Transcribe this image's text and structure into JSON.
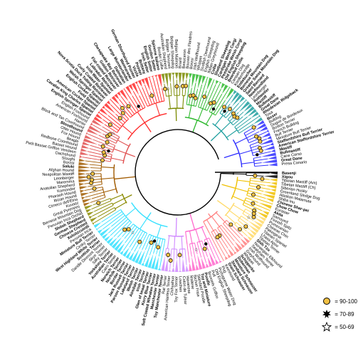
{
  "diagram": {
    "type": "circular-phylogenetic-tree",
    "clades": [
      {
        "color": "#000000",
        "tips": 2,
        "labels": [
          "Basenji",
          "Xigou"
        ],
        "bold": [
          true,
          true
        ]
      },
      {
        "color": "#f0c000",
        "tips": 12,
        "labels": [
          "Tibetan Mastiff (Am)",
          "Tibetan Mastiff (Ch)",
          "Siberian Husky",
          "Greenland Sledge Dog",
          "Alaskan Malamute",
          "Shiba Inu",
          "Chinese Shar-pei",
          "Chow Chow",
          "Eurasier",
          "Akita",
          "Samoyed",
          "Finnish Spitz"
        ],
        "bold": [
          false,
          false,
          false,
          false,
          false,
          false,
          true,
          true,
          false,
          true,
          false,
          false
        ]
      },
      {
        "color": "#ffd966",
        "tips": 8,
        "labels": [
          "Pomeranian",
          "Chinese Chin",
          "Pekingese",
          "Tibetan Spaniel",
          "Lhasa Apso",
          "Tibetan Terrier",
          "Shih Tzu",
          "Norwegian Elkhound"
        ],
        "bold": [
          false,
          false,
          false,
          false,
          false,
          false,
          true,
          false
        ]
      },
      {
        "color": "#ff8080",
        "tips": 10,
        "labels": [
          "Sealyham Terrier",
          "Irish Wolfhound",
          "Greyhound",
          "Whippet",
          "Schipperke",
          "Doberman",
          "Miniature Schnauzer",
          "Standard Schnauzer",
          "Giant Schnauzer",
          "Keeshond"
        ],
        "bold": [
          false,
          false,
          false,
          false,
          true,
          true,
          true,
          true,
          true,
          false
        ]
      },
      {
        "color": "#ff66cc",
        "tips": 10,
        "labels": [
          "Pug",
          "Portuguese Water Dog",
          "Old English Sheepdog",
          "Puli",
          "Brussels Griffon",
          "Poodle",
          "Toy and Miniature",
          "Standard Poodle",
          "Bichon Frise",
          "Maltese"
        ],
        "bold": [
          false,
          false,
          false,
          false,
          false,
          true,
          true,
          false,
          false,
          false
        ]
      },
      {
        "color": "#d08aff",
        "tips": 8,
        "labels": [
          "Havanese",
          "Coton de Tulear",
          "Lowchen",
          "Toy Fox Terrier",
          "Chihuahua",
          "American Hairless Terrier",
          "Rat Terrier",
          "Toy Manchester Terrier"
        ],
        "bold": [
          false,
          false,
          false,
          false,
          false,
          false,
          false,
          true
        ]
      },
      {
        "color": "#33e0ff",
        "tips": 24,
        "labels": [
          "Manchester Terrier",
          "Soft Coated Wheaten Terrier",
          "Kerry Blue Terrier",
          "Glen of Imaal Terrier",
          "Irish Terrier",
          "Airedale Terrier",
          "Welsh Terrier",
          "Lakeland Terrier",
          "Parson Russell Terrier",
          "Jack Russell Terrier",
          "Border Terrier",
          "Norfolk Terrier",
          "Norwich Terrier",
          "Cairn Terrier",
          "Australian Terrier",
          "Yorkshire Terrier",
          "Silky Terrier",
          "Skye Terrier",
          "Dandie Dinmont Terrier",
          "Scottish Terrier",
          "West Highland White Terrier",
          "Cesky Terrier",
          "Miniature Bull Terrier",
          "Peruvian Inca"
        ],
        "bold": [
          true,
          true,
          true,
          true,
          true,
          true,
          true,
          true,
          true,
          true,
          true,
          true,
          true,
          false,
          true,
          true,
          false,
          false,
          false,
          true,
          true,
          false,
          true,
          false
        ]
      },
      {
        "color": "#8a8a00",
        "tips": 6,
        "labels": [
          "Xoloitzcuintli",
          "Chinese Crested",
          "German Shepherd",
          "Shiloh Shepherd",
          "Peruvian Inca Orchid",
          "Bernese Mountain Dog"
        ],
        "bold": [
          true,
          true,
          true,
          true,
          false,
          false
        ]
      },
      {
        "color": "#a05a00",
        "tips": 14,
        "labels": [
          "Great Pyrenees",
          "Kuvasz",
          "Cirneco dell'Etna",
          "Ibizan Hound",
          "Pharaoh Hound",
          "Komondor",
          "Anatolian Shepherd",
          "Maremma",
          "Leonberger",
          "Neapolitan Mastiff",
          "Afghan Hound",
          "Saluki",
          "Borzoi",
          "Sloughi"
        ],
        "bold": [
          false,
          false,
          false,
          false,
          false,
          false,
          false,
          false,
          false,
          false,
          false,
          true,
          false,
          false
        ]
      },
      {
        "color": "#e05050",
        "tips": 12,
        "labels": [
          "Dachshund",
          "Petit Basset Griffon Vendeen",
          "Basset Hound",
          "Redbone Coonhound",
          "Beagle",
          "Fox Hound",
          "Otter Hound",
          "Bloodhound",
          "Black and Tan Coonhound",
          "Harrier",
          "American Foxhound",
          "English Foxhound"
        ],
        "bold": [
          false,
          false,
          false,
          false,
          false,
          false,
          false,
          true,
          false,
          false,
          false,
          false
        ]
      },
      {
        "color": "#ff2a2a",
        "tips": 24,
        "labels": [
          "English Springer Spaniel",
          "Cavalier King Charles Spaniel",
          "American Cocker Spaniel",
          "Field Spaniel",
          "English Cocker Spaniel",
          "Welsh Springer Spaniel",
          "Nova Scotia Duck Tolling Retriever",
          "Curly Coated Retriever",
          "Irish Water Spaniel",
          "Labrador Retriever",
          "Flat-coated Retriever",
          "Golden Retriever",
          "Chesapeake Bay Retriever",
          "Dalmatian",
          "Large Munsterlander",
          "Weimaraner",
          "German Shorthaired Pointer",
          "Vizsla",
          "Pointer",
          "Brittany",
          "Irish Setter",
          "English Setter",
          "Gordon Setter",
          "Spinone Italiano"
        ],
        "bold": [
          true,
          true,
          true,
          true,
          true,
          true,
          true,
          true,
          true,
          true,
          true,
          true,
          true,
          true,
          true,
          true,
          true,
          true,
          true,
          true,
          true,
          true,
          true,
          true
        ]
      },
      {
        "color": "#7a8a00",
        "tips": 8,
        "labels": [
          "Border Collie",
          "Australian Shepherd",
          "Belgian Tervuren",
          "Belgian Sheepdog",
          "Belgian Malinois",
          "Briard",
          "Beauceron",
          "Bouvier des Flandres"
        ],
        "bold": [
          false,
          false,
          false,
          false,
          false,
          false,
          false,
          false
        ]
      },
      {
        "color": "#2db82d",
        "tips": 14,
        "labels": [
          "Borzoi",
          "Irish Wolfhound",
          "Whippet",
          "Scottish Deerhound",
          "English Sheepdog",
          "Italian Greyhound",
          "Collie",
          "Shetland Sheepdog",
          "Cardigan Welsh Corgi",
          "Pembroke Welsh Corgi",
          "Old English Sheepdog",
          "Bearded Collie",
          "Canaan Dog",
          "Kooikerhondje"
        ],
        "bold": [
          false,
          false,
          false,
          false,
          false,
          false,
          true,
          true,
          true,
          true,
          true,
          true,
          false,
          false
        ]
      },
      {
        "color": "#1f9f9f",
        "tips": 12,
        "labels": [
          "Entlebucher",
          "Bernese Mountain Dog",
          "Greater Swiss Mountain Dog",
          "Saint Bernard",
          "Newfoundland",
          "Leonberger",
          "Rottweiler",
          "Mastiff",
          "Bullmastiff",
          "Great Dane",
          "Rhodesian Ridgeback",
          "Tosa"
        ],
        "bold": [
          true,
          true,
          true,
          true,
          true,
          false,
          true,
          true,
          true,
          true,
          true,
          false
        ]
      },
      {
        "color": "#2d2dff",
        "tips": 14,
        "labels": [
          "Boxer",
          "Bulldog",
          "Dogue de Bordeaux",
          "Boston Terrier",
          "French Bulldog",
          "Bull Terrier",
          "Miniature Bull Terrier",
          "Staffordshire Bull Terrier",
          "American Staffordshire Terrier",
          "Mastiff",
          "Bullmastiff",
          "Cane Corso",
          "Great Dane",
          "Presa Canario"
        ],
        "bold": [
          true,
          false,
          false,
          false,
          false,
          false,
          false,
          true,
          true,
          true,
          true,
          false,
          true,
          false
        ]
      }
    ]
  },
  "legend": {
    "items": [
      {
        "label": "= 90-100",
        "symbol": "circle"
      },
      {
        "label": "= 70-89",
        "symbol": "burst"
      },
      {
        "label": "= 50-69",
        "symbol": "star"
      }
    ]
  },
  "colors": {
    "support_circle_fill": "#f2c043",
    "support_circle_stroke": "#000000"
  }
}
